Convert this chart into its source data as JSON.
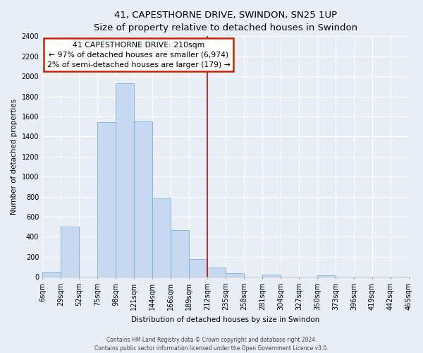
{
  "title": "41, CAPESTHORNE DRIVE, SWINDON, SN25 1UP",
  "subtitle": "Size of property relative to detached houses in Swindon",
  "xlabel": "Distribution of detached houses by size in Swindon",
  "ylabel": "Number of detached properties",
  "bin_labels": [
    "6sqm",
    "29sqm",
    "52sqm",
    "75sqm",
    "98sqm",
    "121sqm",
    "144sqm",
    "166sqm",
    "189sqm",
    "212sqm",
    "235sqm",
    "258sqm",
    "281sqm",
    "304sqm",
    "327sqm",
    "350sqm",
    "373sqm",
    "396sqm",
    "419sqm",
    "442sqm",
    "465sqm"
  ],
  "bar_heights": [
    50,
    500,
    0,
    1540,
    1930,
    1550,
    790,
    465,
    175,
    90,
    35,
    0,
    25,
    0,
    0,
    15,
    0,
    0,
    0,
    0
  ],
  "bar_color": "#c6d9f0",
  "bar_edge_color": "#7ab0d4",
  "vline_index": 9,
  "vline_color": "#cc0000",
  "annotation_title": "41 CAPESTHORNE DRIVE: 210sqm",
  "annotation_line1": "← 97% of detached houses are smaller (6,974)",
  "annotation_line2": "2% of semi-detached houses are larger (179) →",
  "annotation_box_facecolor": "#ffffff",
  "annotation_box_edgecolor": "#cc2200",
  "ylim": [
    0,
    2400
  ],
  "yticks": [
    0,
    200,
    400,
    600,
    800,
    1000,
    1200,
    1400,
    1600,
    1800,
    2000,
    2200,
    2400
  ],
  "footer_line1": "Contains HM Land Registry data © Crown copyright and database right 2024.",
  "footer_line2": "Contains public sector information licensed under the Open Government Licence v3.0.",
  "bg_color": "#e8eef7",
  "grid_color": "#ffffff",
  "title_fontsize": 9.5,
  "subtitle_fontsize": 8.5,
  "axis_label_fontsize": 7.5,
  "tick_fontsize": 7,
  "footer_fontsize": 5.5
}
